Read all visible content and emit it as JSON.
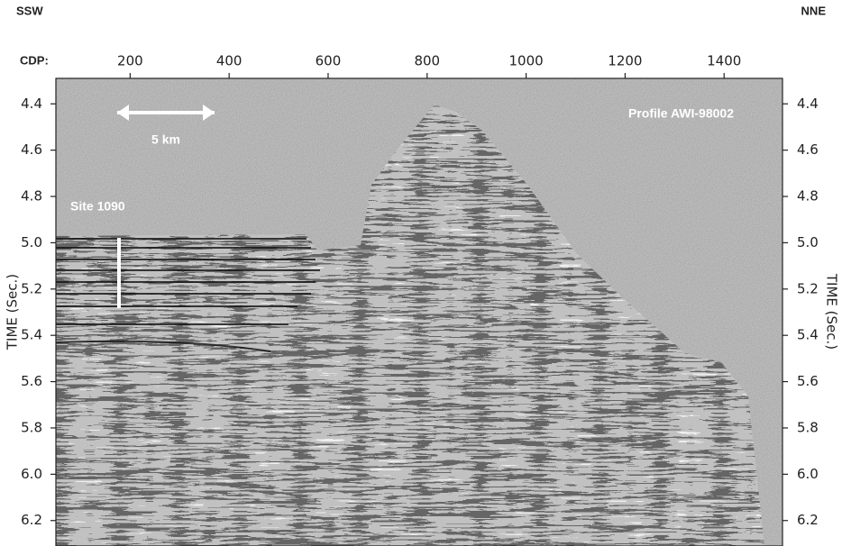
{
  "chart_data": {
    "type": "seismic",
    "left_label": "SSW",
    "right_label": "NNE",
    "x_label": "CDP:",
    "y_label": "TIME (Sec.)",
    "annotations": {
      "scale": "5 km",
      "profile": "Profile AWI-98002",
      "site": "Site 1090"
    },
    "xlim": [
      50,
      1518
    ],
    "xticks": [
      200,
      400,
      600,
      800,
      1000,
      1200,
      1400
    ],
    "ylim": [
      4.29,
      6.31
    ],
    "invert_y": true,
    "yticks": [
      4.4,
      4.6,
      4.8,
      {
        "value": 5,
        "label": "5.0"
      },
      5.2,
      5.4,
      5.6,
      5.8,
      {
        "value": 6,
        "label": "6.0"
      },
      6.2
    ]
  }
}
